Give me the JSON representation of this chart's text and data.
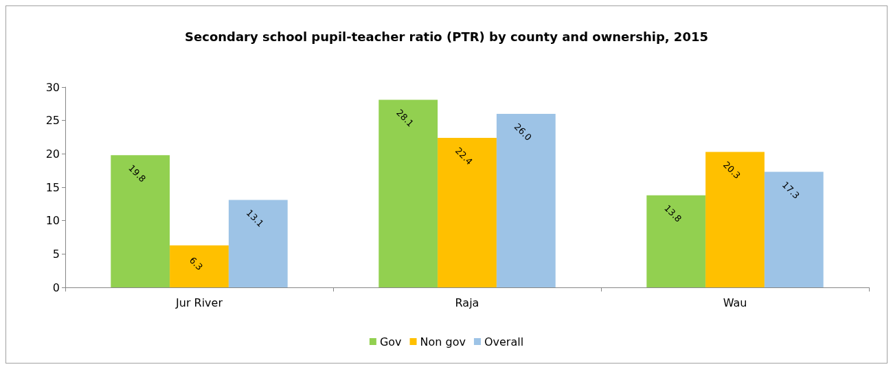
{
  "chart_data": {
    "type": "bar",
    "title": "Secondary school pupil-teacher ratio (PTR) by county and ownership, 2015",
    "categories": [
      "Jur River",
      "Raja",
      "Wau"
    ],
    "series": [
      {
        "name": "Gov",
        "color": "#92d050",
        "values": [
          19.8,
          28.1,
          13.8
        ]
      },
      {
        "name": "Non gov",
        "color": "#ffc000",
        "values": [
          6.3,
          22.4,
          20.3
        ]
      },
      {
        "name": "Overall",
        "color": "#9dc3e6",
        "values": [
          13.1,
          26.0,
          17.3
        ]
      }
    ],
    "value_labels": [
      [
        "19.8",
        "28.1",
        "13.8"
      ],
      [
        "6.3",
        "22.4",
        "20.3"
      ],
      [
        "13.1",
        "26.0",
        "17.3"
      ]
    ],
    "ylim": [
      0,
      30
    ],
    "yticks": [
      0,
      5,
      10,
      15,
      20,
      25,
      30
    ],
    "grid": false,
    "legend": "bottom"
  }
}
